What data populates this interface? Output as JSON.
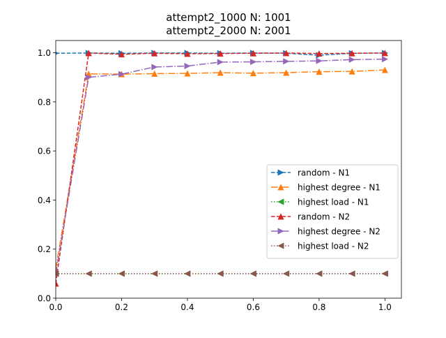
{
  "chart_data": {
    "type": "line",
    "title_lines": [
      "attempt2_1000 N: 1001",
      "attempt2_2000 N: 2001"
    ],
    "xlabel": "",
    "ylabel": "",
    "xlim": [
      0.0,
      1.05
    ],
    "ylim": [
      0.0,
      1.05
    ],
    "xticks": [
      0.0,
      0.2,
      0.4,
      0.6,
      0.8,
      1.0
    ],
    "xtick_labels": [
      "0.0",
      "0.2",
      "0.4",
      "0.6",
      "0.8",
      "1.0"
    ],
    "yticks": [
      0.0,
      0.2,
      0.4,
      0.6,
      0.8,
      1.0
    ],
    "ytick_labels": [
      "0.0",
      "0.2",
      "0.4",
      "0.6",
      "0.8",
      "1.0"
    ],
    "grid": false,
    "legend_position": "center-right",
    "x": [
      0.0,
      0.1,
      0.2,
      0.3,
      0.4,
      0.5,
      0.6,
      0.7,
      0.8,
      0.9,
      1.0
    ],
    "series": [
      {
        "name": "random - N1",
        "color": "#1f77b4",
        "linestyle": "dashed",
        "marker": "triangle-right",
        "values": [
          0.998,
          0.999,
          0.998,
          0.999,
          0.999,
          0.998,
          0.999,
          0.998,
          0.99,
          0.998,
          0.999
        ]
      },
      {
        "name": "highest degree - N1",
        "color": "#ff7f0e",
        "linestyle": "dashdot",
        "marker": "triangle-up",
        "values": [
          0.12,
          0.914,
          0.913,
          0.915,
          0.916,
          0.919,
          0.917,
          0.919,
          0.923,
          0.924,
          0.93
        ]
      },
      {
        "name": "highest load - N1",
        "color": "#2ca02c",
        "linestyle": "dotted",
        "marker": "triangle-left",
        "values": [
          0.1,
          0.1,
          0.1,
          0.1,
          0.1,
          0.1,
          0.1,
          0.1,
          0.1,
          0.1,
          0.1
        ]
      },
      {
        "name": "random - N2",
        "color": "#d62728",
        "linestyle": "dashed",
        "marker": "triangle-up",
        "values": [
          0.06,
          0.999,
          0.994,
          0.998,
          0.996,
          0.997,
          0.998,
          0.999,
          0.997,
          0.998,
          0.999
        ]
      },
      {
        "name": "highest degree - N2",
        "color": "#9467bd",
        "linestyle": "dashdot",
        "marker": "triangle-right",
        "values": [
          0.1,
          0.9,
          0.913,
          0.942,
          0.946,
          0.962,
          0.963,
          0.965,
          0.967,
          0.972,
          0.974
        ]
      },
      {
        "name": "highest load - N2",
        "color": "#8c564b",
        "linestyle": "dotted",
        "marker": "triangle-left",
        "values": [
          0.1,
          0.1,
          0.1,
          0.1,
          0.1,
          0.1,
          0.1,
          0.1,
          0.1,
          0.1,
          0.1
        ]
      }
    ]
  }
}
